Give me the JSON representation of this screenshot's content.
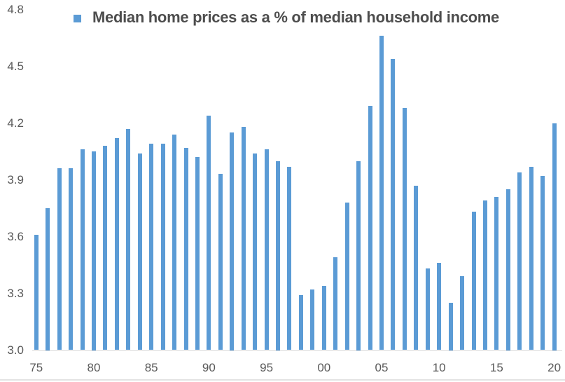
{
  "chart_data": {
    "type": "bar",
    "title": "Median home prices as a % of median household income",
    "x": [
      1975,
      1976,
      1977,
      1978,
      1979,
      1980,
      1981,
      1982,
      1983,
      1984,
      1985,
      1986,
      1987,
      1988,
      1989,
      1990,
      1991,
      1992,
      1993,
      1994,
      1995,
      1996,
      1997,
      1998,
      1999,
      2000,
      2001,
      2002,
      2003,
      2004,
      2005,
      2006,
      2007,
      2008,
      2009,
      2010,
      2011,
      2012,
      2013,
      2014,
      2015,
      2016,
      2017,
      2018,
      2019,
      2020
    ],
    "values": [
      3.61,
      3.75,
      3.96,
      3.96,
      4.06,
      4.05,
      4.08,
      4.12,
      4.17,
      4.04,
      4.09,
      4.09,
      4.14,
      4.07,
      4.02,
      4.24,
      3.93,
      4.15,
      4.18,
      4.04,
      4.06,
      4.0,
      3.97,
      3.29,
      3.32,
      3.34,
      3.49,
      3.78,
      4.0,
      4.29,
      4.66,
      4.54,
      4.28,
      3.87,
      3.43,
      3.46,
      3.25,
      3.39,
      3.73,
      3.79,
      3.81,
      3.85,
      3.94,
      3.97,
      3.92,
      4.2
    ],
    "x_tick_years": [
      1975,
      1980,
      1985,
      1990,
      1995,
      2000,
      2005,
      2010,
      2015,
      2020
    ],
    "x_tick_labels": [
      "75",
      "80",
      "85",
      "90",
      "95",
      "00",
      "05",
      "10",
      "15",
      "20"
    ],
    "y_tick_values": [
      3.0,
      3.3,
      3.6,
      3.9,
      4.2,
      4.5,
      4.8
    ],
    "y_tick_labels": [
      "3.0",
      "3.3",
      "3.6",
      "3.9",
      "4.2",
      "4.5",
      "4.8"
    ],
    "ylim": [
      3.0,
      4.8
    ],
    "grid": false,
    "legend_position": "top-center",
    "bar_color": "#5B9BD5",
    "axis_text_color": "#595959",
    "title_text_color": "#4d4d4d",
    "axis_line_color": "#d9d9d9"
  }
}
